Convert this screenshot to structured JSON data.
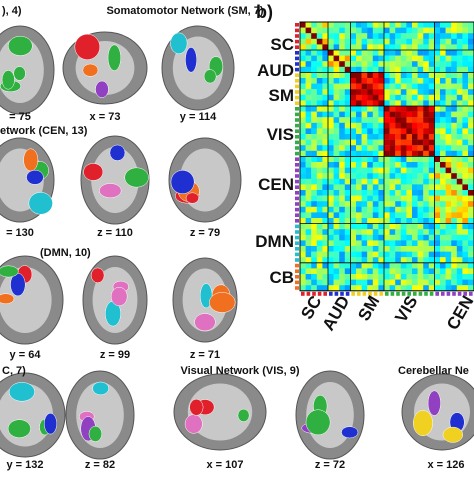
{
  "panel_a": {
    "titles": [
      "), 4)",
      "Somatomotor Network (SM, 7)",
      "etwork (CEN, 13)",
      "(DMN, 10)",
      "C, 7)",
      "Visual Network (VIS, 9)",
      "Cerebellar Ne"
    ],
    "slice_labels": [
      "= 75",
      "x = 73",
      "y = 114",
      "= 130",
      "z = 110",
      "z = 79",
      "y = 64",
      "z = 99",
      "z = 71",
      "y = 132",
      "z = 82",
      "x = 107",
      "z = 72",
      "x = 126"
    ]
  },
  "panel_b": {
    "label": "b)",
    "row_labels": [
      "SC",
      "AUD",
      "SM",
      "VIS",
      "CEN",
      "DMN",
      "CB"
    ],
    "column_labels": [
      "SC",
      "AUD",
      "SM",
      "VIS",
      "CEN"
    ]
  }
}
